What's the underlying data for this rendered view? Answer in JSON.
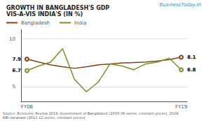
{
  "chart_data": {
    "type": "line",
    "title": "GROWTH IN BANGLADESH'S GDP",
    "subtitle": "VIS-A-VIS INDIA'S (IN %)",
    "annotations": [
      "BusinessToday.In",
      "Source: Economic Review 2019, Government of Bangladesh (2005-06 series, constant prices), 2019;\nRBI database (2011-12 series, constant prices)"
    ],
    "categories": [
      "FY06",
      null,
      null,
      null,
      null,
      null,
      null,
      null,
      null,
      null,
      null,
      null,
      null,
      "FY19"
    ],
    "series": [
      {
        "name": "Bangladesh",
        "color": "#8B4010",
        "marker": "circle",
        "values": [
          7.9,
          7.6,
          7.3,
          7.1,
          6.95,
          7.1,
          7.3,
          7.4,
          7.5,
          7.55,
          7.6,
          7.7,
          7.85,
          8.1
        ],
        "value_labels": [
          "7.9",
          null,
          null,
          null,
          null,
          null,
          null,
          null,
          null,
          null,
          null,
          null,
          null,
          "8.1"
        ]
      },
      {
        "name": "India",
        "color": "#7A9020",
        "marker": "circle",
        "values": [
          6.7,
          7.2,
          7.6,
          9.0,
          5.8,
          4.5,
          5.5,
          7.4,
          7.2,
          6.8,
          7.4,
          7.6,
          8.0,
          6.8
        ],
        "value_labels": [
          "6.7",
          null,
          null,
          null,
          null,
          null,
          null,
          null,
          null,
          null,
          null,
          null,
          null,
          "6.8"
        ]
      }
    ],
    "ylim": [
      3.5,
      11
    ],
    "yticks": [
      5,
      10
    ],
    "grid": true,
    "legend": "upper left",
    "data_labels": true
  }
}
